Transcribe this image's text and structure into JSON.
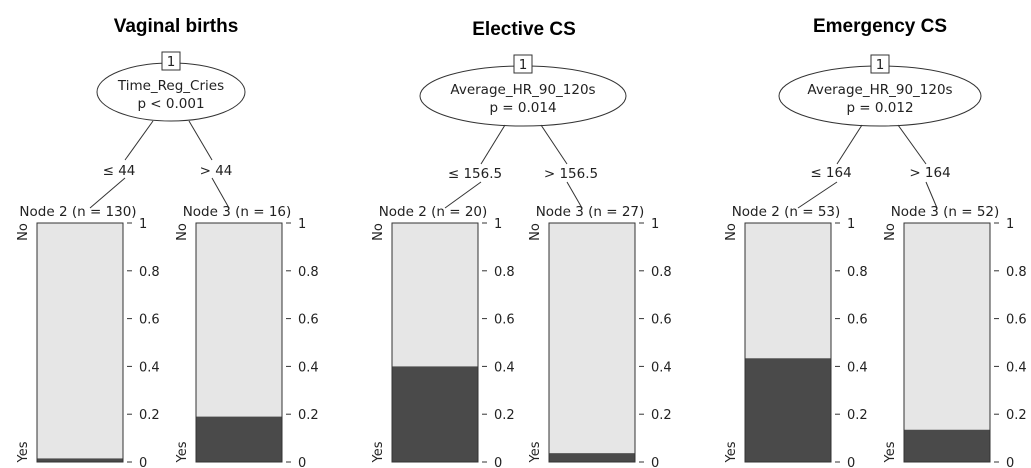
{
  "chart_data": [
    {
      "type": "decision-tree",
      "title": "Vaginal births",
      "root": {
        "id": "1",
        "variable": "Time_Reg_Cries",
        "p": "p < 0.001"
      },
      "splits": [
        "≤ 44",
        "> 44"
      ],
      "y_categories": {
        "top": "No",
        "bottom": "Yes"
      },
      "yticks": [
        "0",
        "0.2",
        "0.4",
        "0.6",
        "0.8",
        "1"
      ],
      "ylim": [
        0,
        1
      ],
      "nodes": [
        {
          "label": "Node 2 (n = 130)",
          "yes_proportion": 0.015
        },
        {
          "label": "Node 3 (n = 16)",
          "yes_proportion": 0.19
        }
      ]
    },
    {
      "type": "decision-tree",
      "title": "Elective CS",
      "root": {
        "id": "1",
        "variable": "Average_HR_90_120s",
        "p": "p = 0.014"
      },
      "splits": [
        "≤ 156.5",
        "> 156.5"
      ],
      "y_categories": {
        "top": "No",
        "bottom": "Yes"
      },
      "yticks": [
        "0",
        "0.2",
        "0.4",
        "0.6",
        "0.8",
        "1"
      ],
      "ylim": [
        0,
        1
      ],
      "nodes": [
        {
          "label": "Node 2 (n = 20)",
          "yes_proportion": 0.4
        },
        {
          "label": "Node 3 (n = 27)",
          "yes_proportion": 0.037
        }
      ]
    },
    {
      "type": "decision-tree",
      "title": "Emergency CS",
      "root": {
        "id": "1",
        "variable": "Average_HR_90_120s",
        "p": "p = 0.012"
      },
      "splits": [
        "≤ 164",
        "> 164"
      ],
      "y_categories": {
        "top": "No",
        "bottom": "Yes"
      },
      "yticks": [
        "0",
        "0.2",
        "0.4",
        "0.6",
        "0.8",
        "1"
      ],
      "ylim": [
        0,
        1
      ],
      "nodes": [
        {
          "label": "Node 2 (n = 53)",
          "yes_proportion": 0.434
        },
        {
          "label": "Node 3 (n = 52)",
          "yes_proportion": 0.135
        }
      ]
    }
  ],
  "colors": {
    "no_fill": "#e6e6e6",
    "yes_fill": "#4a4a4a",
    "stroke": "#333333"
  }
}
